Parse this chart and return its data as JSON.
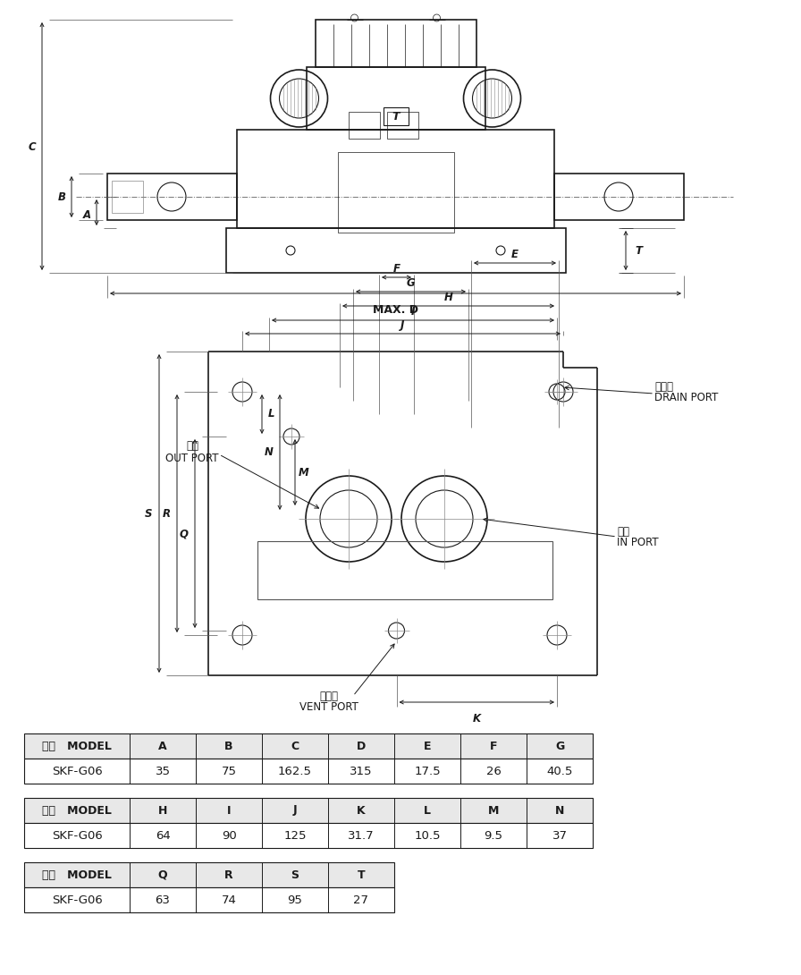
{
  "bg_color": "#ffffff",
  "line_color": "#1a1a1a",
  "table1_headers": [
    "型式   MODEL",
    "A",
    "B",
    "C",
    "D",
    "E",
    "F",
    "G"
  ],
  "table1_row": [
    "SKF-G06",
    "35",
    "75",
    "162.5",
    "315",
    "17.5",
    "26",
    "40.5"
  ],
  "table2_headers": [
    "型式   MODEL",
    "H",
    "I",
    "J",
    "K",
    "L",
    "M",
    "N"
  ],
  "table2_row": [
    "SKF-G06",
    "64",
    "90",
    "125",
    "31.7",
    "10.5",
    "9.5",
    "37"
  ],
  "table3_headers": [
    "型式   MODEL",
    "Q",
    "R",
    "S",
    "T"
  ],
  "table3_row": [
    "SKF-G06",
    "63",
    "74",
    "95",
    "27"
  ],
  "label_out_cn": "出口",
  "label_out_en": "OUT PORT",
  "label_drain_cn": "洩流口",
  "label_drain_en": "DRAIN PORT",
  "label_in_cn": "入口",
  "label_in_en": "IN PORT",
  "label_vent_cn": "遙控孔",
  "label_vent_en": "VENT PORT"
}
